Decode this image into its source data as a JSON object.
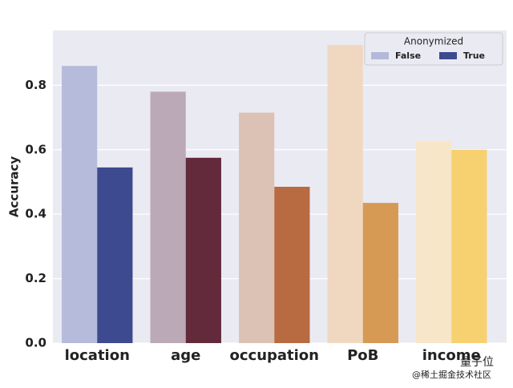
{
  "chart_data": {
    "type": "bar",
    "y_label": "Accuracy",
    "categories": [
      "location",
      "age",
      "occupation",
      "PoB",
      "income"
    ],
    "series": [
      {
        "name": "False",
        "color": "#b4b9d9",
        "bar_colors": [
          "#b6bbdb",
          "#bba9b8",
          "#dcc2b4",
          "#f0d8c0",
          "#f8e6c8"
        ],
        "values": [
          0.86,
          0.78,
          0.715,
          0.925,
          0.625
        ]
      },
      {
        "name": "True",
        "color": "#3c4a8e",
        "bar_colors": [
          "#3d4a8f",
          "#622a3a",
          "#b86a40",
          "#d69a55",
          "#f7d070"
        ],
        "values": [
          0.545,
          0.575,
          0.485,
          0.435,
          0.6
        ]
      }
    ],
    "legend_title": "Anonymized",
    "legend_position": "upper right",
    "ylim": [
      0,
      0.97
    ],
    "yticks": [
      {
        "value": 0,
        "label": "0.0"
      },
      0.2,
      0.4,
      0.6,
      0.8
    ],
    "grid": true
  },
  "watermark": {
    "brand": "量子位",
    "source": "@稀土掘金技术社区"
  }
}
